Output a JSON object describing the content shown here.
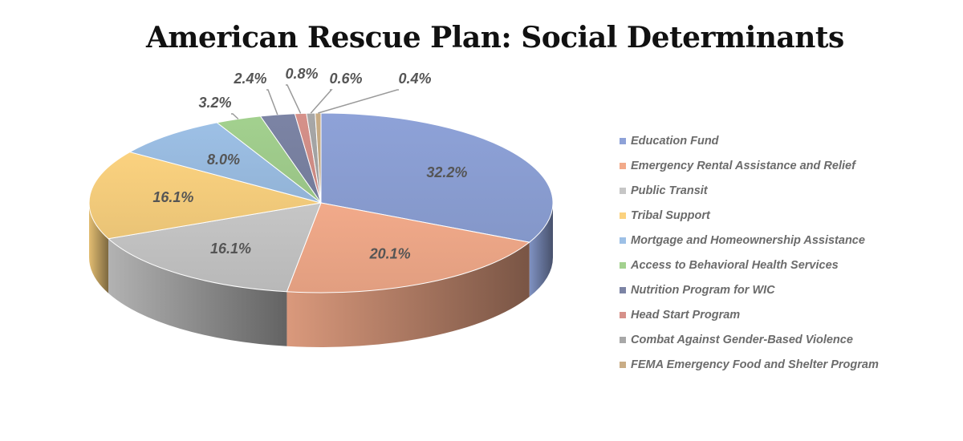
{
  "chart_data": {
    "type": "pie",
    "title": "American Rescue Plan: Social Determinants",
    "legend_position": "right",
    "categories": [
      "Education Fund",
      "Emergency Rental Assistance and Relief",
      "Public Transit",
      "Tribal Support",
      "Mortgage and Homeownership Assistance",
      "Access to Behavioral Health Services",
      "Nutrition Program for WIC",
      "Head Start Program",
      "Combat Against Gender-Based Violence",
      "FEMA Emergency Food and Shelter Program"
    ],
    "values": [
      32.2,
      20.1,
      16.1,
      16.1,
      8.0,
      3.2,
      2.4,
      0.8,
      0.6,
      0.4
    ],
    "labels": [
      "32.2%",
      "20.1%",
      "16.1%",
      "16.1%",
      "8.0%",
      "3.2%",
      "2.4%",
      "0.8%",
      "0.6%",
      "0.4%"
    ],
    "colors": [
      "#8ea2d8",
      "#f2aa8a",
      "#c6c6c6",
      "#fbd27f",
      "#9dc0e6",
      "#a3d18f",
      "#7c84a5",
      "#d6918a",
      "#a8a8a8",
      "#c9ad86"
    ]
  }
}
